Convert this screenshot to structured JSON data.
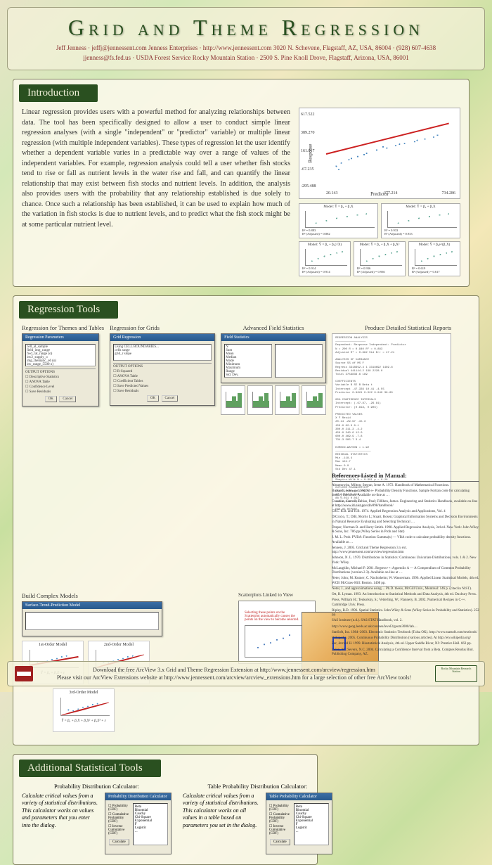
{
  "header": {
    "title": "Grid and Theme Regression",
    "byline1": "Jeff Jenness · jeffj@jennessent.com      Jenness Enterprises · http://www.jennessent.com      3020 N. Schevene, Flagstaff, AZ, USA, 86004 · (928) 607-4638",
    "byline2": "jjenness@fs.fed.us  ·  USDA Forest Service Rocky Mountain Station  ·  2500 S. Pine Knoll Drove, Flagstaff, Arizona, USA, 86001"
  },
  "intro": {
    "title": "Introduction",
    "text": "Linear regression provides users with a powerful method for analyzing relationships between data. The tool has been specifically designed to allow a user to conduct simple linear regression analyses (with a single \"independent\" or \"predictor\" variable) or multiple linear regression (with multiple independent variables). These types of regression let the user identify whether a dependent variable varies in a predictable way over a range of values of the independent variables. For example, regression analysis could tell a user whether fish stocks tend to rise or fall as nutrient levels in the water rise and fall, and can quantify the linear relationship that may exist between fish stocks and nutrient levels. In addition, the analysis also provides users with the probability that any relationship established is due solely to chance. Once such a relationship has been established, it can be used to explain how much of the variation in fish stocks is due to nutrient levels, and to predict what the fish stock might be at some particular nutrient level.",
    "scatter": {
      "ylabel": "Response",
      "xlabel": "Predictor",
      "yticks": [
        "617.522",
        "389.270",
        "161.017",
        "-67.235",
        "-295.488"
      ],
      "xticks": [
        "20.143",
        "377.214",
        "734.286"
      ],
      "line_color": "#cc2020",
      "point_color": "#4a88c0"
    },
    "mini": [
      {
        "label": "Model: Ŷ = β₀ + β₁X",
        "r2": "R² = 0.883",
        "r2a": "R² (Adjusted) = 0.882"
      },
      {
        "label": "Model: Ŷ = β₀ + β₁X",
        "sub": "X' = ln(X)",
        "r2": "R² = 0.933",
        "r2a": "R² (Adjusted) = 0.933"
      },
      {
        "label": "Model: Ŷ = β₀ + β₁X",
        "sub": "X' = 1/X",
        "r2": "R² = 0.686",
        "r2a": "R² (Adjusted) = 0.684"
      },
      {
        "label": "Model: Ŷ = β₀ + β₁(√X)",
        "r2": "R² = 0.914",
        "r2a": "R² (Adjusted) = 0.914"
      },
      {
        "label": "Model: Ŷ = β₀ + β₁X + β₂X²",
        "r2": "R² = 0.936",
        "r2a": "R² (Adjusted) = 0.936"
      },
      {
        "label": "Model: Ŷ = β₀e^(β₁X)",
        "r2": "R² = 0.619",
        "r2a": "R² (Adjusted) = 0.617"
      }
    ],
    "row1_indices": [
      0,
      1
    ],
    "row2_indices": [
      2,
      3,
      4
    ]
  },
  "tools": {
    "title": "Regression Tools",
    "sub_themes": "Regression for Themes and Tables",
    "sub_grids": "Regression for Grids",
    "sub_stats": "Advanced Field Statistics",
    "sub_build": "Build Complex Models",
    "sub_scatter": "Scatterplots Linked to View",
    "report_label": "Produce Detailed Statistical Reports",
    "scatter_note": "Selecting these points on the Scatterplot automatically causes the points on the view to become selected.",
    "dialog_themes_title": "Regression Parameters",
    "dialog_grids_title": "Grid Regression",
    "dialog_build_title": "Surface-Trend-Prediction Model",
    "dialog_stats_title": "Field Statistics",
    "list_items": "cell_al_sample\nfield_img_range\nfwd_rat_range (o)\ninv2_supply_o\nimg_thematic_o6 (o)\ninv_range_5500 o)\nrange_o5 (Point)...",
    "list_grids": "Using CELL BOUNDARIES...\ncells   range\ngrid_r   slope",
    "options_block": "OUTPUT OPTIONS",
    "opts": [
      "Descriptive Statistics",
      "ANOVA Table",
      "Confidence Level",
      "Save Residuals",
      "Confidence Bands (Simple)",
      "Save Predicted Values"
    ],
    "grid_opts": [
      "R-Squared",
      "ANOVA Table",
      "Coefficient Tables",
      "Save Predicted Values",
      "Save Residuals",
      "Save Local Residuals",
      "Report on Outputs"
    ],
    "models": [
      {
        "title": "1st-Order Model",
        "eq": "Ŷ = β₀ + β₁X + ε"
      },
      {
        "title": "2nd-Order Model",
        "eq": "Ŷ = β₀ + β₁X + β₂X² + ε"
      },
      {
        "title": "3rd-Order Model",
        "eq": "Ŷ = β₀ + β₁X + β₂X² + β₃X³ + ε"
      }
    ],
    "stat_fields": "N\nSum\nMean\nMedian\nMode\nMinimum\nMaximum\nRange\nStd. Dev.\nVariance",
    "report_text": "REGRESSION ANALYSIS\n——————————————————\nDependent: Response  Independent: Predictor\nN = 200   R = 0.940   R² = 0.883\nAdjusted R² = 0.882   Std Err = 47.21\n\nANALYSIS OF VARIANCE\nSource      SS         df    MS        F\nRegress  3318692.4    1  3318692  1489.6\nResidual  441144.2  198    2228.0\nTotal    3759836.6  199\n\nCOEFFICIENTS\nVariable    B        SE B    Beta    t\nIntercept  -47.339  10.41          -4.55\nPredictor   0.8621  0.022   0.940  38.60\n\n95% CONFIDENCE INTERVALS\nIntercept: (-67.87, -26.81)\nPredictor: (0.818, 0.906)\n\nPREDICTED VALUES\nX        Ŷ       Resid\n20.14  -29.97  -15.3\n150.0   82.0    8.1\n300.0  211.3   -4.2\n450.0  340.6   12.0\n600.0  469.9   -7.8\n734.3  585.7    3.4\n\nDURBIN-WATSON = 1.92\n—————————————————————\nRESIDUAL STATISTICS\nMin    -118.4\nMax     124.7\nMean      0.0\nStd Dev  47.1\n\nNORMALITY OF RESIDUALS\nShapiro-Wilk W = 0.991  p = 0.28\n\nOUTLIER DIAGNOSTICS\nCase  Leverage  Cook's D\n 17    0.024    0.018\n 88    0.031    0.042\n143    0.019    0.011\n—————————————————————\nEND OF REPORT"
  },
  "addl": {
    "title": "Additional Statistical Tools",
    "prob_label": "Probability Distribution Calculator:",
    "table_label": "Table Probability Distribution Calculator:",
    "prob_text": "Calculate critical values from a variety of statistical distributions. This calculator works on values and parameters that you enter into the dialog.",
    "table_text": "Calculate critical values from a variety of statistical distributions. This calculator works on all values in a table based on parameters you set in the dialog.",
    "dialog_prob_title": "Probability Distribution Calculator",
    "dialog_table_title": "Table Probability Calculator",
    "prob_opts": [
      "Probability (CDF)",
      "Cumulative Probability (CDF)",
      "Inverse Cumulative (CDF)"
    ],
    "dist_list": "Beta\nBinomial\nCauchy\nChi-Square\nExponential\nF\nLogistic\n..."
  },
  "refs": {
    "title": "References Listed in Manual:",
    "items": [
      "Abramowitz, Milton; Stegun, Irene A. 1972. Handbook of Mathematical Functions.",
      "Burkardt, John. n.d. PROB — Probability Density Functions. Sample Fortran code for calculating density functions. Available on-line at …",
      "Croarkin, Carroll; Tobias, Paul; Filliben, James. Engineering and Statistics Handbook, available on-line at http://www.itl.nist.gov/div898/handbook/",
      "CRC. R.B. and H.B. 1974. Applied Regression Analysis and Applications, Vol. 4",
      "DiCiccio, T.; DiB, Morris L; Stuart, Rosen; Graphical Information Systems and Decision Environments in Natural Resource Evaluating and Selecting Technical …",
      "Draper, Norman R. and Harry Smith. 1998. Applied Regression Analysis, 3rd ed. New York: John Wiley & Sons, Inc. 706 pp (Wiley Series in Prob and Stat)",
      "J. M. L. Prob. PVBA: Function Gamma(x) — VBA code to calculate probability density functions. Available at …",
      "Jenness, J. 2005. Grid and Theme Regression 3.x ext. http://www.jennessent.com/arcview/regression.htm",
      "Johnson, N. L. 1970. Distributions in Statistics: Continuous Univariate Distributions, vols. 1 & 2. New York: Wiley.",
      "McLaughlin, Michael P. 2001. Regress++: Appendix A — A Compendium of Common Probability Distributions (version 2.3). Available on-line at …",
      "Neter, John; M. Kutner; C. Nachtsheim; W. Wasserman. 1996. Applied Linear Statistical Models, 4th ed. WCB McGraw-Hill: Boston. 1408 pp.",
      "Neter, J., and approximations using… Ph.D. thesis, McGill Univ., Montreal: 146 p. (cited in NIST).",
      "Ott, R. Lyman. 1993. An Introduction to Statistical Methods and Data Analysis, 4th ed. Duxbury Press.",
      "Press, William H.; Teukolsky, S.; Vetterling, W.; Flannery, B. 2002. Numerical Recipes in C++. Cambridge Univ. Press.",
      "Ripley, B.D. 1996. Spatial Statistics. John Wiley & Sons (Wiley Series in Probability and Statistics). 252 pp.",
      "SAS Institute (n.d.). SAS/STAT Handbook, vol. 2.",
      "http://www.geog.leeds.ac.uk/courses/level3/geom3000/lab…",
      "StatSoft, Inc. 1984–2003. Electronic Statistics Textbook (Tulsa OK). http://www.statsoft.com/textbook/",
      "Wikipedia. 2005. Continuous Probability Distribution (various articles). At http://en.wikipedia.org/",
      "Zar, Jerrold H. 1999. Biostatistical Analysis, 4th ed. Upper Saddle River, NJ: Prentice Hall. 663 pp.",
      "Zelen, M.; Severo, N.C. 2004. Calculating a Confidence Interval from a Beta. Comptes Rendus Biol. Publishing Company, AZ."
    ]
  },
  "footer": {
    "line1": "Download the free ArcView 3.x Grid and Theme Regression Extension at http://www.jennessent.com/arcview/regression.htm",
    "line2": "Please visit our ArcView Extensions website at http://www.jennessent.com/arcview/arcview_extensions.htm for a large selection of other free ArcView tools!",
    "logo2_text": "Rocky Mountain Research Station"
  },
  "btn_ok": "OK",
  "btn_cancel": "Cancel",
  "btn_calc": "Calculate"
}
